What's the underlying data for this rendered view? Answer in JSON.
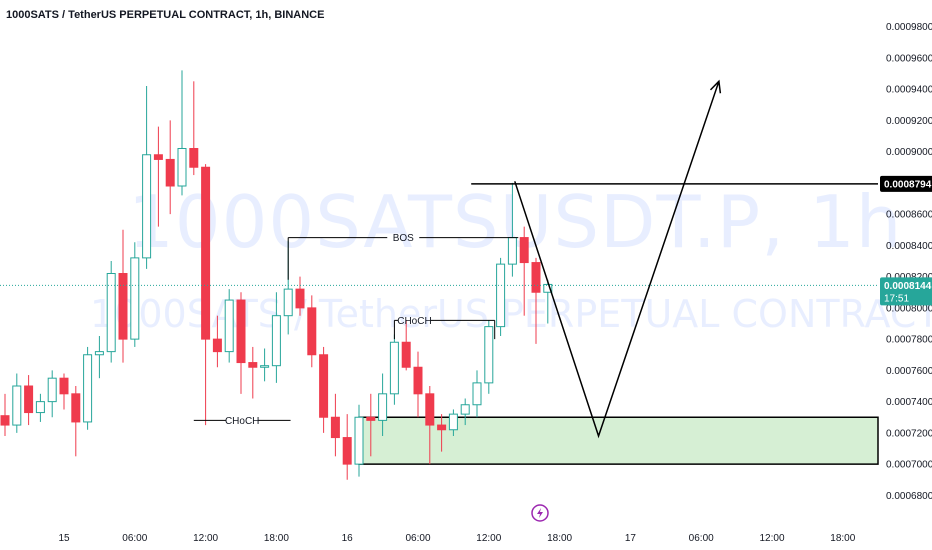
{
  "window": {
    "title": "1000SATS / TetherUS PERPETUAL CONTRACT, 1h, BINANCE",
    "watermark_symbol": "1000SATSUSDT.P, 1h",
    "watermark_desc": "1000SATS / TetherUS PERPETUAL CONTRACT"
  },
  "colors": {
    "up": "#26a69a",
    "down": "#ef3b4d",
    "zone_fill": "#d6efd4",
    "tag_price": "#26a69a",
    "tag_level": "#000000",
    "drawing": "#000000",
    "event_icon": "#9c27b0"
  },
  "icons": {
    "event": "lightning-icon"
  },
  "chart_data": {
    "type": "candlestick",
    "ylim": [
      0.00067,
      0.00099
    ],
    "y_ticks": [
      "0.0006800",
      "0.0007000",
      "0.0007200",
      "0.0007400",
      "0.0007600",
      "0.0007800",
      "0.0008000",
      "0.0008200",
      "0.0008400",
      "0.0008600",
      "0.0008800",
      "0.0009000",
      "0.0009200",
      "0.0009400",
      "0.0009600",
      "0.0009800"
    ],
    "y_tick_values": [
      0.00068,
      0.0007,
      0.00072,
      0.00074,
      0.00076,
      0.00078,
      0.0008,
      0.00082,
      0.00084,
      0.00086,
      0.00088,
      0.0009,
      0.00092,
      0.00094,
      0.00096,
      0.00098
    ],
    "x_ticks": [
      {
        "label": "15",
        "bar": 5
      },
      {
        "label": "06:00",
        "bar": 11
      },
      {
        "label": "12:00",
        "bar": 17
      },
      {
        "label": "18:00",
        "bar": 23
      },
      {
        "label": "16",
        "bar": 29
      },
      {
        "label": "06:00",
        "bar": 35
      },
      {
        "label": "12:00",
        "bar": 41
      },
      {
        "label": "18:00",
        "bar": 47
      },
      {
        "label": "17",
        "bar": 53
      },
      {
        "label": "06:00",
        "bar": 59
      },
      {
        "label": "12:00",
        "bar": 65
      },
      {
        "label": "18:00",
        "bar": 71
      }
    ],
    "candles": [
      [
        0.000731,
        0.000745,
        0.000718,
        0.000725
      ],
      [
        0.000725,
        0.000758,
        0.00072,
        0.00075
      ],
      [
        0.00075,
        0.000757,
        0.000725,
        0.000733
      ],
      [
        0.000733,
        0.000745,
        0.000727,
        0.00074
      ],
      [
        0.00074,
        0.00076,
        0.00073,
        0.000755
      ],
      [
        0.000755,
        0.000758,
        0.000735,
        0.000745
      ],
      [
        0.000745,
        0.00075,
        0.000705,
        0.000727
      ],
      [
        0.000727,
        0.000775,
        0.000722,
        0.00077
      ],
      [
        0.00077,
        0.000782,
        0.000755,
        0.000772
      ],
      [
        0.000772,
        0.00083,
        0.000765,
        0.000822
      ],
      [
        0.000822,
        0.00085,
        0.000765,
        0.00078
      ],
      [
        0.00078,
        0.000842,
        0.000775,
        0.000832
      ],
      [
        0.000832,
        0.000942,
        0.000825,
        0.000898
      ],
      [
        0.000898,
        0.000916,
        0.000852,
        0.000895
      ],
      [
        0.000895,
        0.00092,
        0.00086,
        0.000878
      ],
      [
        0.000878,
        0.000952,
        0.000872,
        0.000902
      ],
      [
        0.000902,
        0.000945,
        0.000885,
        0.00089
      ],
      [
        0.00089,
        0.000892,
        0.000725,
        0.00078
      ],
      [
        0.00078,
        0.000795,
        0.000762,
        0.000772
      ],
      [
        0.000772,
        0.000812,
        0.000765,
        0.000805
      ],
      [
        0.000805,
        0.00081,
        0.000745,
        0.000765
      ],
      [
        0.000765,
        0.000775,
        0.000742,
        0.000762
      ],
      [
        0.000762,
        0.000774,
        0.000753,
        0.000763
      ],
      [
        0.000763,
        0.00081,
        0.000752,
        0.000795
      ],
      [
        0.000795,
        0.000843,
        0.000783,
        0.000812
      ],
      [
        0.000812,
        0.00082,
        0.000795,
        0.0008
      ],
      [
        0.0008,
        0.000808,
        0.000762,
        0.00077
      ],
      [
        0.00077,
        0.000775,
        0.00072,
        0.00073
      ],
      [
        0.00073,
        0.000745,
        0.000705,
        0.000717
      ],
      [
        0.000717,
        0.000732,
        0.00069,
        0.0007
      ],
      [
        0.0007,
        0.000738,
        0.000692,
        0.00073
      ],
      [
        0.00073,
        0.000745,
        0.000705,
        0.000728
      ],
      [
        0.000728,
        0.000758,
        0.000718,
        0.000745
      ],
      [
        0.000745,
        0.000783,
        0.000738,
        0.000778
      ],
      [
        0.000778,
        0.000792,
        0.00076,
        0.000762
      ],
      [
        0.000762,
        0.000772,
        0.00073,
        0.000745
      ],
      [
        0.000745,
        0.00075,
        0.0007,
        0.000725
      ],
      [
        0.000725,
        0.000732,
        0.000708,
        0.000722
      ],
      [
        0.000722,
        0.000735,
        0.000718,
        0.000732
      ],
      [
        0.000732,
        0.000742,
        0.000725,
        0.000738
      ],
      [
        0.000738,
        0.00076,
        0.00073,
        0.000752
      ],
      [
        0.000752,
        0.000792,
        0.000745,
        0.000788
      ],
      [
        0.000788,
        0.000832,
        0.000782,
        0.000828
      ],
      [
        0.000828,
        0.00088,
        0.00082,
        0.000845
      ],
      [
        0.000845,
        0.000852,
        0.000795,
        0.000829
      ],
      [
        0.000829,
        0.000832,
        0.000777,
        0.00081
      ],
      [
        0.00081,
        0.000818,
        0.00079,
        0.000815
      ]
    ],
    "zone": {
      "from_bar": 30,
      "to_bar": 78,
      "top": 0.00073,
      "bottom": 0.0007
    },
    "horizontal_level": {
      "value": 0.0008794,
      "from_bar": 34,
      "label": "0.0008794"
    },
    "last_price": {
      "label": "0.0008144",
      "countdown": "17:51",
      "value": 0.0008144
    },
    "annotations": [
      {
        "text": "BOS",
        "from_bar": 24,
        "to_bar": 43.5,
        "y": 0.000845
      },
      {
        "text": "CHoCH",
        "from_bar": 33,
        "to_bar": 36.4,
        "y": 0.000792
      },
      {
        "text": "CHoCH",
        "from_bar": 16,
        "to_bar": 24.2,
        "y": 0.000728
      },
      {
        "text": "CHoCH",
        "from_bar": 36.4,
        "to_bar": 41.5,
        "y": 0.000792
      }
    ],
    "projection": [
      {
        "bar": 43.2,
        "y": 0.000881
      },
      {
        "bar": 50.3,
        "y": 0.000718
      },
      {
        "bar": 60.5,
        "y": 0.000945
      }
    ]
  }
}
